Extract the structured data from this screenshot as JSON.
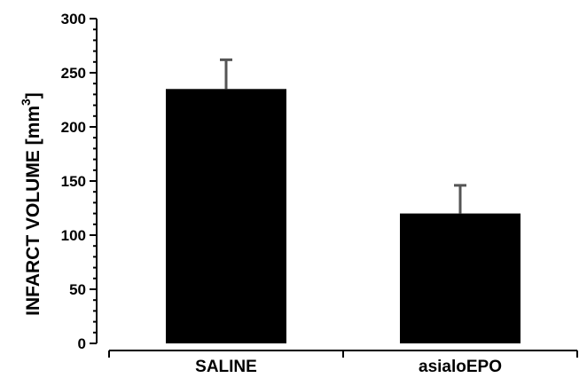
{
  "chart_data": {
    "type": "bar",
    "categories": [
      "SALINE",
      "asialoEPO"
    ],
    "values": [
      235,
      120
    ],
    "error_bars": [
      27,
      26
    ],
    "ylabel": "INFARCT VOLUME [mm",
    "ylabel_superscript": "3",
    "ylabel_suffix": "]",
    "ylim": [
      0,
      300
    ],
    "yticks": [
      0,
      50,
      100,
      150,
      200,
      250,
      300
    ],
    "ytick_labels": [
      "0",
      "50",
      "100",
      "150",
      "200",
      "250",
      "300"
    ],
    "grid": false,
    "legend": "none",
    "bar_color": "#000000",
    "error_bar_color": "#555555"
  }
}
